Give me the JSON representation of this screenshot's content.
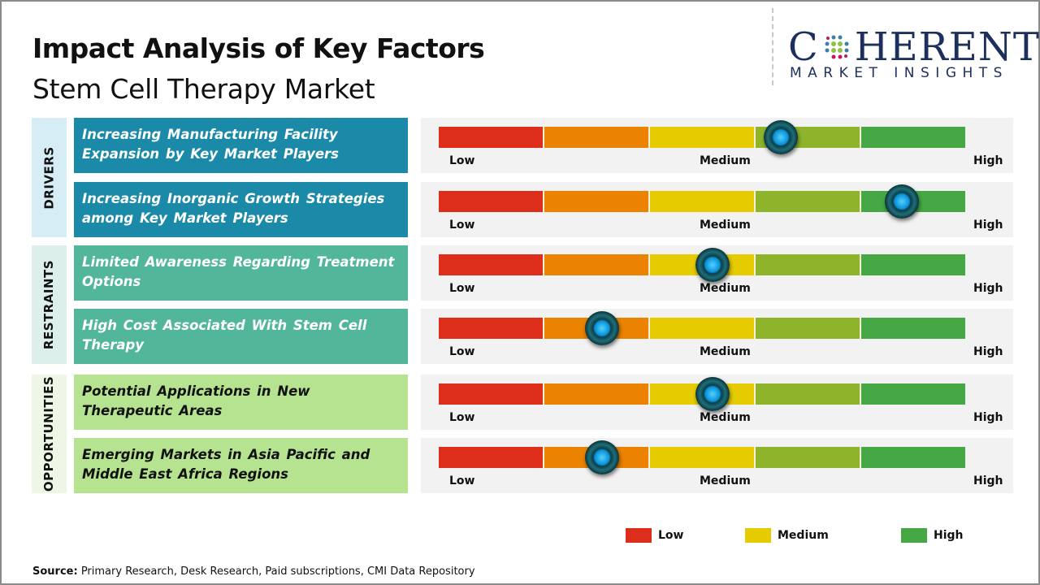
{
  "chart_data": {
    "type": "gauge",
    "title": "Impact Analysis of Key Factors",
    "subtitle": "Stem Cell Therapy Market",
    "scale_labels": {
      "low": "Low",
      "medium": "Medium",
      "high": "High"
    },
    "segment_colors": [
      "#dc2e1a",
      "#eb8200",
      "#e5cb00",
      "#8db42a",
      "#45a844"
    ],
    "groups": [
      {
        "name": "DRIVERS",
        "color": "#1b8aa9",
        "label_bg": "#d6edf6",
        "text_color": "#ffffff",
        "factors": [
          {
            "label": "Increasing Manufacturing Facility Expansion by Key Market Players",
            "impact": 0.65
          },
          {
            "label": "Increasing Inorganic Growth Strategies among Key Market Players",
            "impact": 0.88
          }
        ]
      },
      {
        "name": "RESTRAINTS",
        "color": "#52b79a",
        "label_bg": "#dcefeb",
        "text_color": "#ffffff",
        "factors": [
          {
            "label": "Limited Awareness Regarding Treatment Options",
            "impact": 0.52
          },
          {
            "label": "High Cost Associated With Stem Cell Therapy",
            "impact": 0.31
          }
        ]
      },
      {
        "name": "OPPORTUNITIES",
        "color": "#b5e38f",
        "label_bg": "#eef7e6",
        "text_color": "#111111",
        "factors": [
          {
            "label": "Potential Applications in New Therapeutic Areas",
            "impact": 0.52
          },
          {
            "label": "Emerging Markets in Asia Pacific and Middle East Africa Regions",
            "impact": 0.31
          }
        ]
      }
    ],
    "legend": [
      {
        "label": "Low",
        "color": "#dc2e1a"
      },
      {
        "label": "Medium",
        "color": "#e5cb00"
      },
      {
        "label": "High",
        "color": "#45a844"
      }
    ],
    "legend_position": "bottom-right"
  },
  "logo": {
    "main": "COHERENT",
    "sub": "MARKET INSIGHTS"
  },
  "source": {
    "label": "Source:",
    "text": " Primary Research, Desk Research, Paid subscriptions, CMI Data Repository"
  }
}
